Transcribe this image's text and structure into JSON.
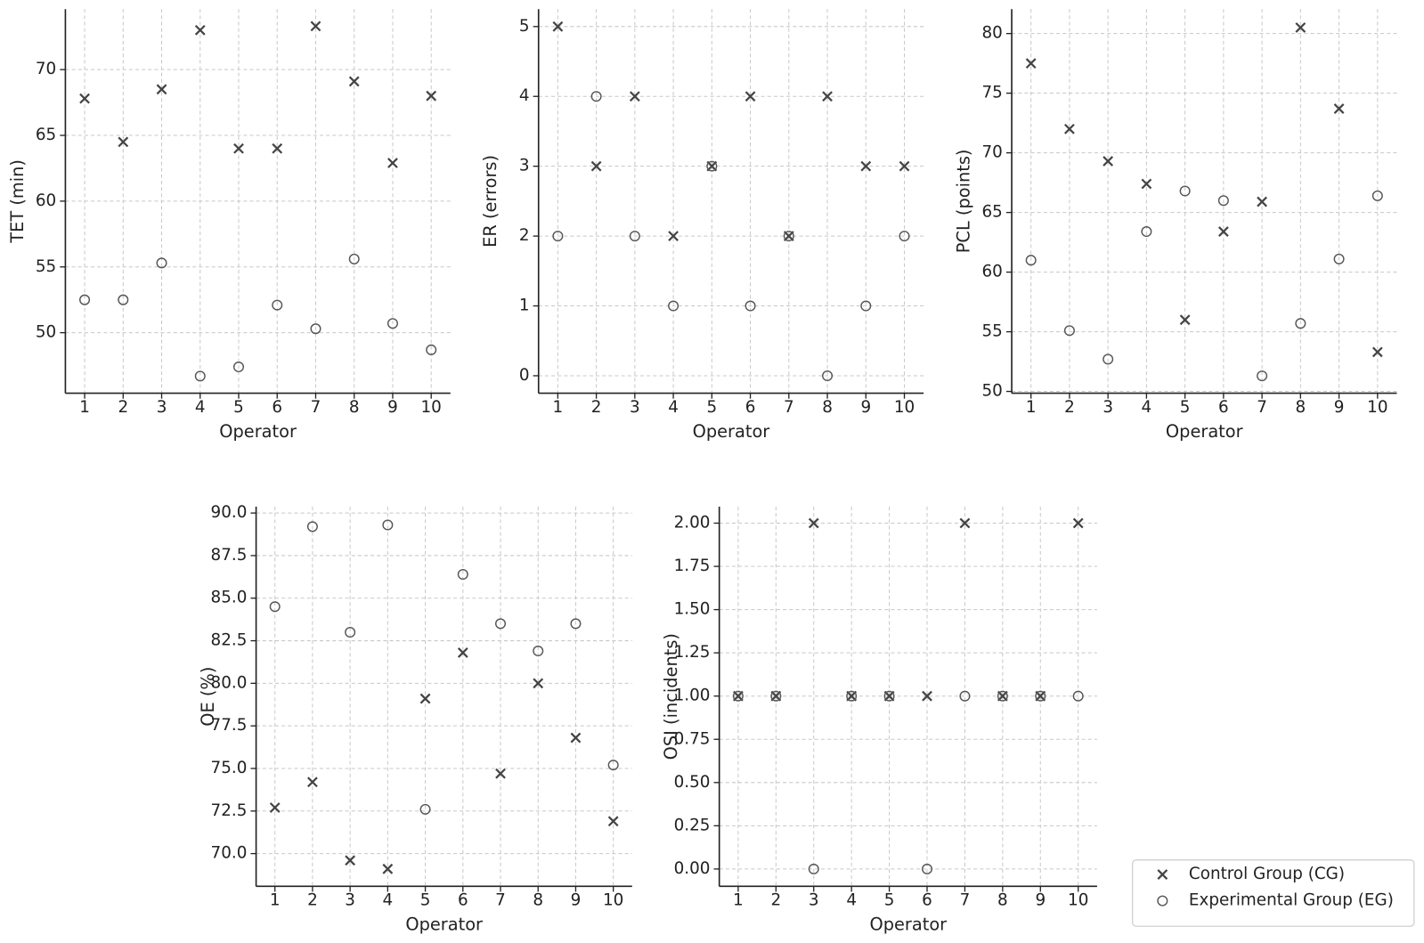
{
  "legend": {
    "position": "lower right",
    "entries": [
      {
        "name": "Control Group (CG)",
        "marker": "x",
        "color": "#444444"
      },
      {
        "name": "Experimental Group (EG)",
        "marker": "o",
        "color": "#555555"
      }
    ]
  },
  "chart_data": [
    {
      "type": "scatter",
      "xlabel": "Operator",
      "ylabel": "TET (min)",
      "x": [
        1,
        2,
        3,
        4,
        5,
        6,
        7,
        8,
        9,
        10
      ],
      "xlim": [
        0.5,
        10.5
      ],
      "xticks": [
        1,
        2,
        3,
        4,
        5,
        6,
        7,
        8,
        9,
        10
      ],
      "ylim": [
        45.4,
        74.6
      ],
      "yticks": [
        50,
        55,
        60,
        65,
        70
      ],
      "grid": true,
      "series": [
        {
          "marker": "x",
          "color": "#444444",
          "values": [
            67.8,
            64.5,
            68.5,
            73.0,
            64.0,
            64.0,
            73.3,
            69.1,
            62.9,
            68.0
          ]
        },
        {
          "marker": "o",
          "color": "#555555",
          "values": [
            52.5,
            52.5,
            55.3,
            46.7,
            47.4,
            52.1,
            50.3,
            55.6,
            50.7,
            48.7
          ]
        }
      ]
    },
    {
      "type": "scatter",
      "xlabel": "Operator",
      "ylabel": "ER (errors)",
      "x": [
        1,
        2,
        3,
        4,
        5,
        6,
        7,
        8,
        9,
        10
      ],
      "xlim": [
        0.5,
        10.5
      ],
      "xticks": [
        1,
        2,
        3,
        4,
        5,
        6,
        7,
        8,
        9,
        10
      ],
      "ylim": [
        -0.25,
        5.25
      ],
      "yticks": [
        0,
        1,
        2,
        3,
        4,
        5
      ],
      "grid": true,
      "series": [
        {
          "marker": "x",
          "color": "#444444",
          "values": [
            5,
            3,
            4,
            2,
            3,
            4,
            2,
            4,
            3,
            3
          ]
        },
        {
          "marker": "o",
          "color": "#555555",
          "values": [
            2,
            4,
            2,
            1,
            3,
            1,
            2,
            0,
            1,
            2
          ]
        }
      ]
    },
    {
      "type": "scatter",
      "xlabel": "Operator",
      "ylabel": "PCL (points)",
      "x": [
        1,
        2,
        3,
        4,
        5,
        6,
        7,
        8,
        9,
        10
      ],
      "xlim": [
        0.5,
        10.5
      ],
      "xticks": [
        1,
        2,
        3,
        4,
        5,
        6,
        7,
        8,
        9,
        10
      ],
      "ylim": [
        49.85,
        82.05
      ],
      "yticks": [
        50,
        55,
        60,
        65,
        70,
        75,
        80
      ],
      "grid": true,
      "series": [
        {
          "marker": "x",
          "color": "#444444",
          "values": [
            77.5,
            72.0,
            69.3,
            67.4,
            56.0,
            63.4,
            65.9,
            80.5,
            73.7,
            53.3
          ]
        },
        {
          "marker": "o",
          "color": "#555555",
          "values": [
            61.0,
            55.1,
            52.7,
            63.4,
            66.8,
            66.0,
            51.3,
            55.7,
            61.1,
            66.4
          ]
        }
      ]
    },
    {
      "type": "scatter",
      "xlabel": "Operator",
      "ylabel": "OE (%)",
      "x": [
        1,
        2,
        3,
        4,
        5,
        6,
        7,
        8,
        9,
        10
      ],
      "xlim": [
        0.5,
        10.5
      ],
      "xticks": [
        1,
        2,
        3,
        4,
        5,
        6,
        7,
        8,
        9,
        10
      ],
      "ylim": [
        68.08,
        90.37
      ],
      "yticks": [
        {
          "value": 70,
          "label": "70.0"
        },
        {
          "value": 72.5,
          "label": "72.5"
        },
        {
          "value": 75,
          "label": "75.0"
        },
        {
          "value": 77.5,
          "label": "77.5"
        },
        {
          "value": 80,
          "label": "80.0"
        },
        {
          "value": 82.5,
          "label": "82.5"
        },
        {
          "value": 85,
          "label": "85.0"
        },
        {
          "value": 87.5,
          "label": "87.5"
        },
        {
          "value": 90,
          "label": "90.0"
        }
      ],
      "grid": true,
      "series": [
        {
          "marker": "x",
          "color": "#444444",
          "values": [
            72.7,
            74.2,
            69.6,
            69.1,
            79.1,
            81.8,
            74.7,
            80.0,
            76.8,
            71.9
          ]
        },
        {
          "marker": "o",
          "color": "#555555",
          "values": [
            84.5,
            89.2,
            83.0,
            89.3,
            72.6,
            86.4,
            83.5,
            81.9,
            83.5,
            75.2
          ]
        }
      ]
    },
    {
      "type": "scatter",
      "xlabel": "Operator",
      "ylabel": "OSI (incidents)",
      "x": [
        1,
        2,
        3,
        4,
        5,
        6,
        7,
        8,
        9,
        10
      ],
      "xlim": [
        0.5,
        10.5
      ],
      "xticks": [
        1,
        2,
        3,
        4,
        5,
        6,
        7,
        8,
        9,
        10
      ],
      "ylim": [
        -0.1,
        2.095
      ],
      "yticks": [
        {
          "value": 0,
          "label": "0.00"
        },
        {
          "value": 0.25,
          "label": "0.25"
        },
        {
          "value": 0.5,
          "label": "0.50"
        },
        {
          "value": 0.75,
          "label": "0.75"
        },
        {
          "value": 1,
          "label": "1.00"
        },
        {
          "value": 1.25,
          "label": "1.25"
        },
        {
          "value": 1.5,
          "label": "1.50"
        },
        {
          "value": 1.75,
          "label": "1.75"
        },
        {
          "value": 2,
          "label": "2.00"
        }
      ],
      "grid": true,
      "series": [
        {
          "marker": "x",
          "color": "#444444",
          "values": [
            1,
            1,
            2,
            1,
            1,
            1,
            2,
            1,
            1,
            2
          ]
        },
        {
          "marker": "o",
          "color": "#555555",
          "values": [
            1,
            1,
            0,
            1,
            1,
            0,
            1,
            1,
            1,
            1
          ]
        }
      ]
    }
  ]
}
